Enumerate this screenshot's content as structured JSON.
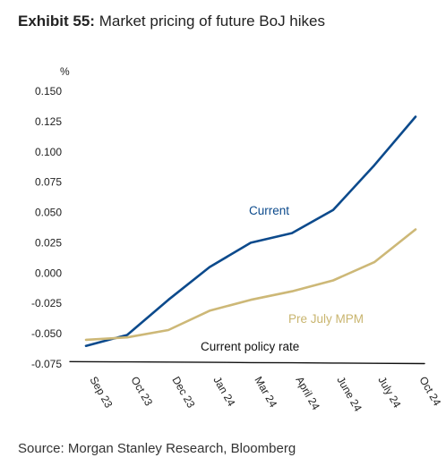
{
  "header": {
    "exhibit_label": "Exhibit 55:",
    "title_text": "Market pricing of future BoJ hikes"
  },
  "footer": {
    "source": "Source: Morgan Stanley Research, Bloomberg"
  },
  "colors": {
    "current": "#0c4a8c",
    "pre_july_mpm": "#cdb877",
    "policy_rate": "#111111",
    "annotation_current": "#0c4a8c",
    "annotation_pre": "#c9b56f",
    "annotation_policy": "#111111"
  },
  "chart_data": {
    "type": "line",
    "unit_label": "%",
    "categories": [
      "Sep 23",
      "Oct 23",
      "Dec 23",
      "Jan 24",
      "Mar 24",
      "April 24",
      "June 24",
      "July 24",
      "Oct 24"
    ],
    "yticks": [
      0.15,
      0.125,
      0.1,
      0.075,
      0.05,
      0.025,
      0.0,
      -0.025,
      -0.05,
      -0.075
    ],
    "ytick_labels": [
      "0.150",
      "0.125",
      "0.100",
      "0.075",
      "0.050",
      "0.025",
      "0.000",
      "-0.025",
      "-0.050",
      "-0.075"
    ],
    "ylim": [
      -0.075,
      0.15
    ],
    "grid": false,
    "series": [
      {
        "key": "current",
        "name": "Current",
        "values": [
          -0.06,
          -0.051,
          -0.022,
          0.005,
          0.025,
          0.033,
          0.052,
          0.089,
          0.129
        ]
      },
      {
        "key": "pre_july_mpm",
        "name": "Pre July MPM",
        "values": [
          -0.055,
          -0.053,
          -0.047,
          -0.031,
          -0.022,
          -0.015,
          -0.006,
          0.009,
          0.036
        ]
      },
      {
        "key": "policy_rate",
        "name": "Current policy rate",
        "values": [
          -0.073,
          -0.0732,
          -0.0734,
          -0.0736,
          -0.0738,
          -0.074,
          -0.0742,
          -0.0744,
          -0.0746
        ]
      }
    ]
  }
}
